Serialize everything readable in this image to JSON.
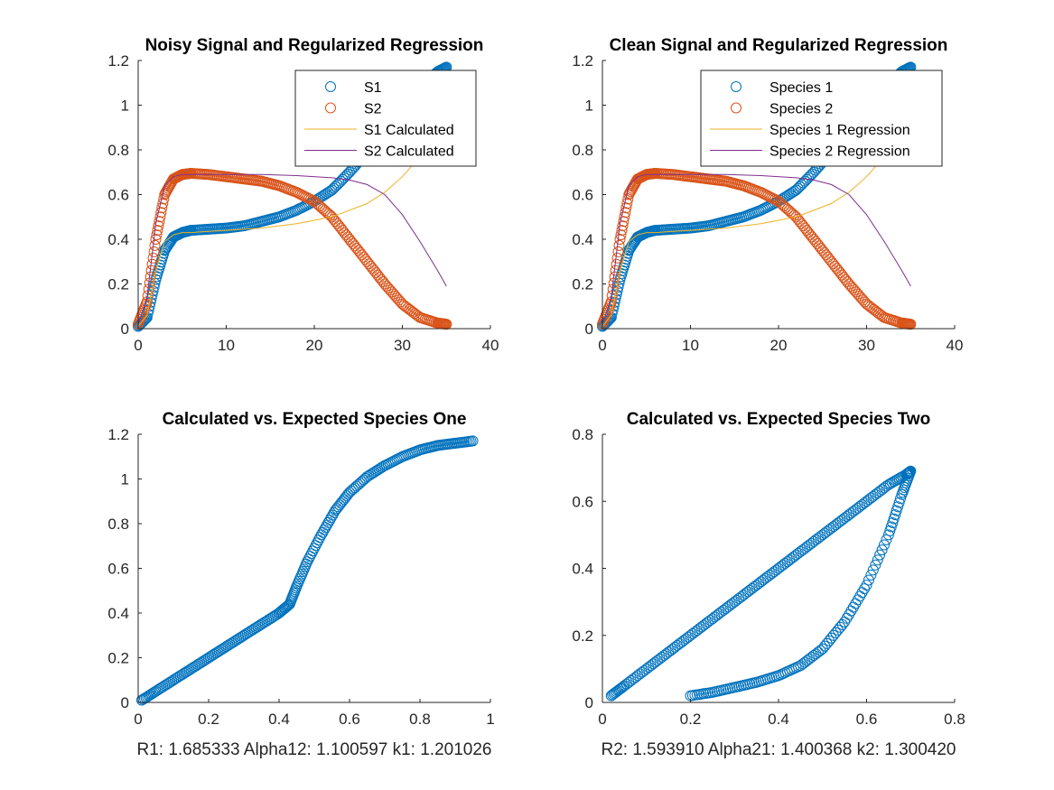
{
  "chart_data": [
    {
      "type": "line",
      "title": "Noisy Signal and Regularized Regression",
      "xlabel": "",
      "ylabel": "",
      "xlim": [
        0,
        40
      ],
      "ylim": [
        0,
        1.2
      ],
      "xticks": [
        "0",
        "10",
        "20",
        "30",
        "40"
      ],
      "yticks": [
        "0",
        "0.2",
        "0.4",
        "0.6",
        "0.8",
        "1",
        "1.2"
      ],
      "legend_position": "top-right",
      "series": [
        {
          "name": "S1",
          "style": "markers",
          "color": "#0072BD",
          "x": [
            0,
            1,
            2,
            3,
            4,
            5,
            6,
            8,
            10,
            12,
            14,
            16,
            18,
            20,
            22,
            24,
            26,
            28,
            30,
            32,
            34,
            35
          ],
          "y": [
            0.01,
            0.05,
            0.22,
            0.35,
            0.41,
            0.43,
            0.44,
            0.445,
            0.45,
            0.46,
            0.48,
            0.5,
            0.53,
            0.57,
            0.62,
            0.7,
            0.79,
            0.89,
            0.99,
            1.08,
            1.15,
            1.17
          ]
        },
        {
          "name": "S2",
          "style": "markers",
          "color": "#D95319",
          "x": [
            0,
            1,
            2,
            3,
            4,
            5,
            6,
            8,
            10,
            12,
            14,
            16,
            18,
            20,
            22,
            24,
            26,
            28,
            30,
            32,
            34,
            35
          ],
          "y": [
            0.02,
            0.12,
            0.4,
            0.6,
            0.67,
            0.69,
            0.695,
            0.69,
            0.68,
            0.67,
            0.66,
            0.64,
            0.61,
            0.57,
            0.5,
            0.4,
            0.3,
            0.2,
            0.11,
            0.05,
            0.025,
            0.02
          ]
        },
        {
          "name": "S1 Calculated",
          "style": "line",
          "color": "#EDB120",
          "x": [
            0,
            1,
            2,
            3,
            4,
            5,
            6,
            8,
            10,
            14,
            18,
            22,
            26,
            28,
            30,
            32,
            34,
            35
          ],
          "y": [
            0.01,
            0.06,
            0.26,
            0.39,
            0.42,
            0.43,
            0.43,
            0.435,
            0.44,
            0.45,
            0.47,
            0.5,
            0.56,
            0.61,
            0.68,
            0.77,
            0.88,
            0.95
          ]
        },
        {
          "name": "S2 Calculated",
          "style": "line",
          "color": "#7E2F8E",
          "x": [
            0,
            1,
            2,
            3,
            4,
            5,
            6,
            8,
            10,
            14,
            18,
            22,
            24,
            26,
            28,
            30,
            32,
            34,
            35
          ],
          "y": [
            0.02,
            0.14,
            0.47,
            0.64,
            0.68,
            0.69,
            0.69,
            0.69,
            0.69,
            0.69,
            0.685,
            0.675,
            0.665,
            0.645,
            0.6,
            0.51,
            0.39,
            0.26,
            0.19
          ]
        }
      ]
    },
    {
      "type": "line",
      "title": "Clean Signal and Regularized Regression",
      "xlabel": "",
      "ylabel": "",
      "xlim": [
        0,
        40
      ],
      "ylim": [
        0,
        1.2
      ],
      "xticks": [
        "0",
        "10",
        "20",
        "30",
        "40"
      ],
      "yticks": [
        "0",
        "0.2",
        "0.4",
        "0.6",
        "0.8",
        "1",
        "1.2"
      ],
      "legend_position": "top-right",
      "series": [
        {
          "name": "Species 1",
          "style": "markers",
          "color": "#0072BD",
          "x": [
            0,
            1,
            2,
            3,
            4,
            5,
            6,
            8,
            10,
            12,
            14,
            16,
            18,
            20,
            22,
            24,
            26,
            28,
            30,
            32,
            34,
            35
          ],
          "y": [
            0.01,
            0.05,
            0.22,
            0.35,
            0.41,
            0.43,
            0.44,
            0.445,
            0.45,
            0.46,
            0.48,
            0.5,
            0.53,
            0.57,
            0.62,
            0.7,
            0.79,
            0.89,
            0.99,
            1.08,
            1.15,
            1.17
          ]
        },
        {
          "name": "Species 2",
          "style": "markers",
          "color": "#D95319",
          "x": [
            0,
            1,
            2,
            3,
            4,
            5,
            6,
            8,
            10,
            12,
            14,
            16,
            18,
            20,
            22,
            24,
            26,
            28,
            30,
            32,
            34,
            35
          ],
          "y": [
            0.02,
            0.12,
            0.4,
            0.6,
            0.67,
            0.69,
            0.695,
            0.69,
            0.68,
            0.67,
            0.66,
            0.64,
            0.61,
            0.57,
            0.5,
            0.4,
            0.3,
            0.2,
            0.11,
            0.05,
            0.025,
            0.02
          ]
        },
        {
          "name": "Species 1 Regression",
          "style": "line",
          "color": "#EDB120",
          "x": [
            0,
            1,
            2,
            3,
            4,
            5,
            6,
            8,
            10,
            14,
            18,
            22,
            26,
            28,
            30,
            32,
            34,
            35
          ],
          "y": [
            0.01,
            0.06,
            0.26,
            0.39,
            0.42,
            0.43,
            0.43,
            0.435,
            0.44,
            0.45,
            0.47,
            0.5,
            0.56,
            0.61,
            0.68,
            0.77,
            0.88,
            0.95
          ]
        },
        {
          "name": "Species 2 Regression",
          "style": "line",
          "color": "#7E2F8E",
          "x": [
            0,
            1,
            2,
            3,
            4,
            5,
            6,
            8,
            10,
            14,
            18,
            22,
            24,
            26,
            28,
            30,
            32,
            34,
            35
          ],
          "y": [
            0.02,
            0.14,
            0.47,
            0.64,
            0.68,
            0.69,
            0.69,
            0.69,
            0.69,
            0.69,
            0.685,
            0.675,
            0.665,
            0.645,
            0.6,
            0.51,
            0.39,
            0.26,
            0.19
          ]
        }
      ]
    },
    {
      "type": "scatter",
      "title": "Calculated vs. Expected Species One",
      "xlabel": "R1: 1.685333 Alpha12: 1.100597 k1: 1.201026",
      "ylabel": "",
      "xlim": [
        0,
        1
      ],
      "ylim": [
        0,
        1.2
      ],
      "xticks": [
        "0",
        "0.2",
        "0.4",
        "0.6",
        "0.8",
        "1"
      ],
      "yticks": [
        "0",
        "0.2",
        "0.4",
        "0.6",
        "0.8",
        "1",
        "1.2"
      ],
      "series": [
        {
          "style": "markers",
          "color": "#0072BD",
          "x": [
            0.01,
            0.05,
            0.1,
            0.15,
            0.2,
            0.25,
            0.3,
            0.35,
            0.4,
            0.43,
            0.45,
            0.48,
            0.52,
            0.56,
            0.6,
            0.65,
            0.7,
            0.75,
            0.8,
            0.85,
            0.9,
            0.95
          ],
          "y": [
            0.01,
            0.05,
            0.1,
            0.15,
            0.2,
            0.25,
            0.3,
            0.35,
            0.4,
            0.44,
            0.52,
            0.63,
            0.75,
            0.86,
            0.94,
            1.01,
            1.06,
            1.1,
            1.13,
            1.15,
            1.16,
            1.17
          ]
        }
      ]
    },
    {
      "type": "scatter",
      "title": "Calculated vs. Expected Species Two",
      "xlabel": "R2: 1.593910 Alpha21: 1.400368 k2: 1.300420",
      "ylabel": "",
      "xlim": [
        0,
        0.8
      ],
      "ylim": [
        0,
        0.8
      ],
      "xticks": [
        "0",
        "0.2",
        "0.4",
        "0.6",
        "0.8"
      ],
      "yticks": [
        "0",
        "0.2",
        "0.4",
        "0.6",
        "0.8"
      ],
      "series": [
        {
          "style": "markers",
          "color": "#0072BD",
          "x": [
            0.02,
            0.05,
            0.1,
            0.15,
            0.2,
            0.25,
            0.3,
            0.35,
            0.4,
            0.45,
            0.5,
            0.55,
            0.6,
            0.65,
            0.69,
            0.7,
            0.68,
            0.65,
            0.6,
            0.55,
            0.5,
            0.45,
            0.4,
            0.35,
            0.3,
            0.25,
            0.2
          ],
          "y": [
            0.02,
            0.05,
            0.1,
            0.15,
            0.2,
            0.25,
            0.3,
            0.35,
            0.4,
            0.45,
            0.5,
            0.55,
            0.6,
            0.65,
            0.68,
            0.69,
            0.62,
            0.5,
            0.35,
            0.24,
            0.16,
            0.11,
            0.08,
            0.06,
            0.045,
            0.03,
            0.02
          ]
        }
      ]
    }
  ]
}
